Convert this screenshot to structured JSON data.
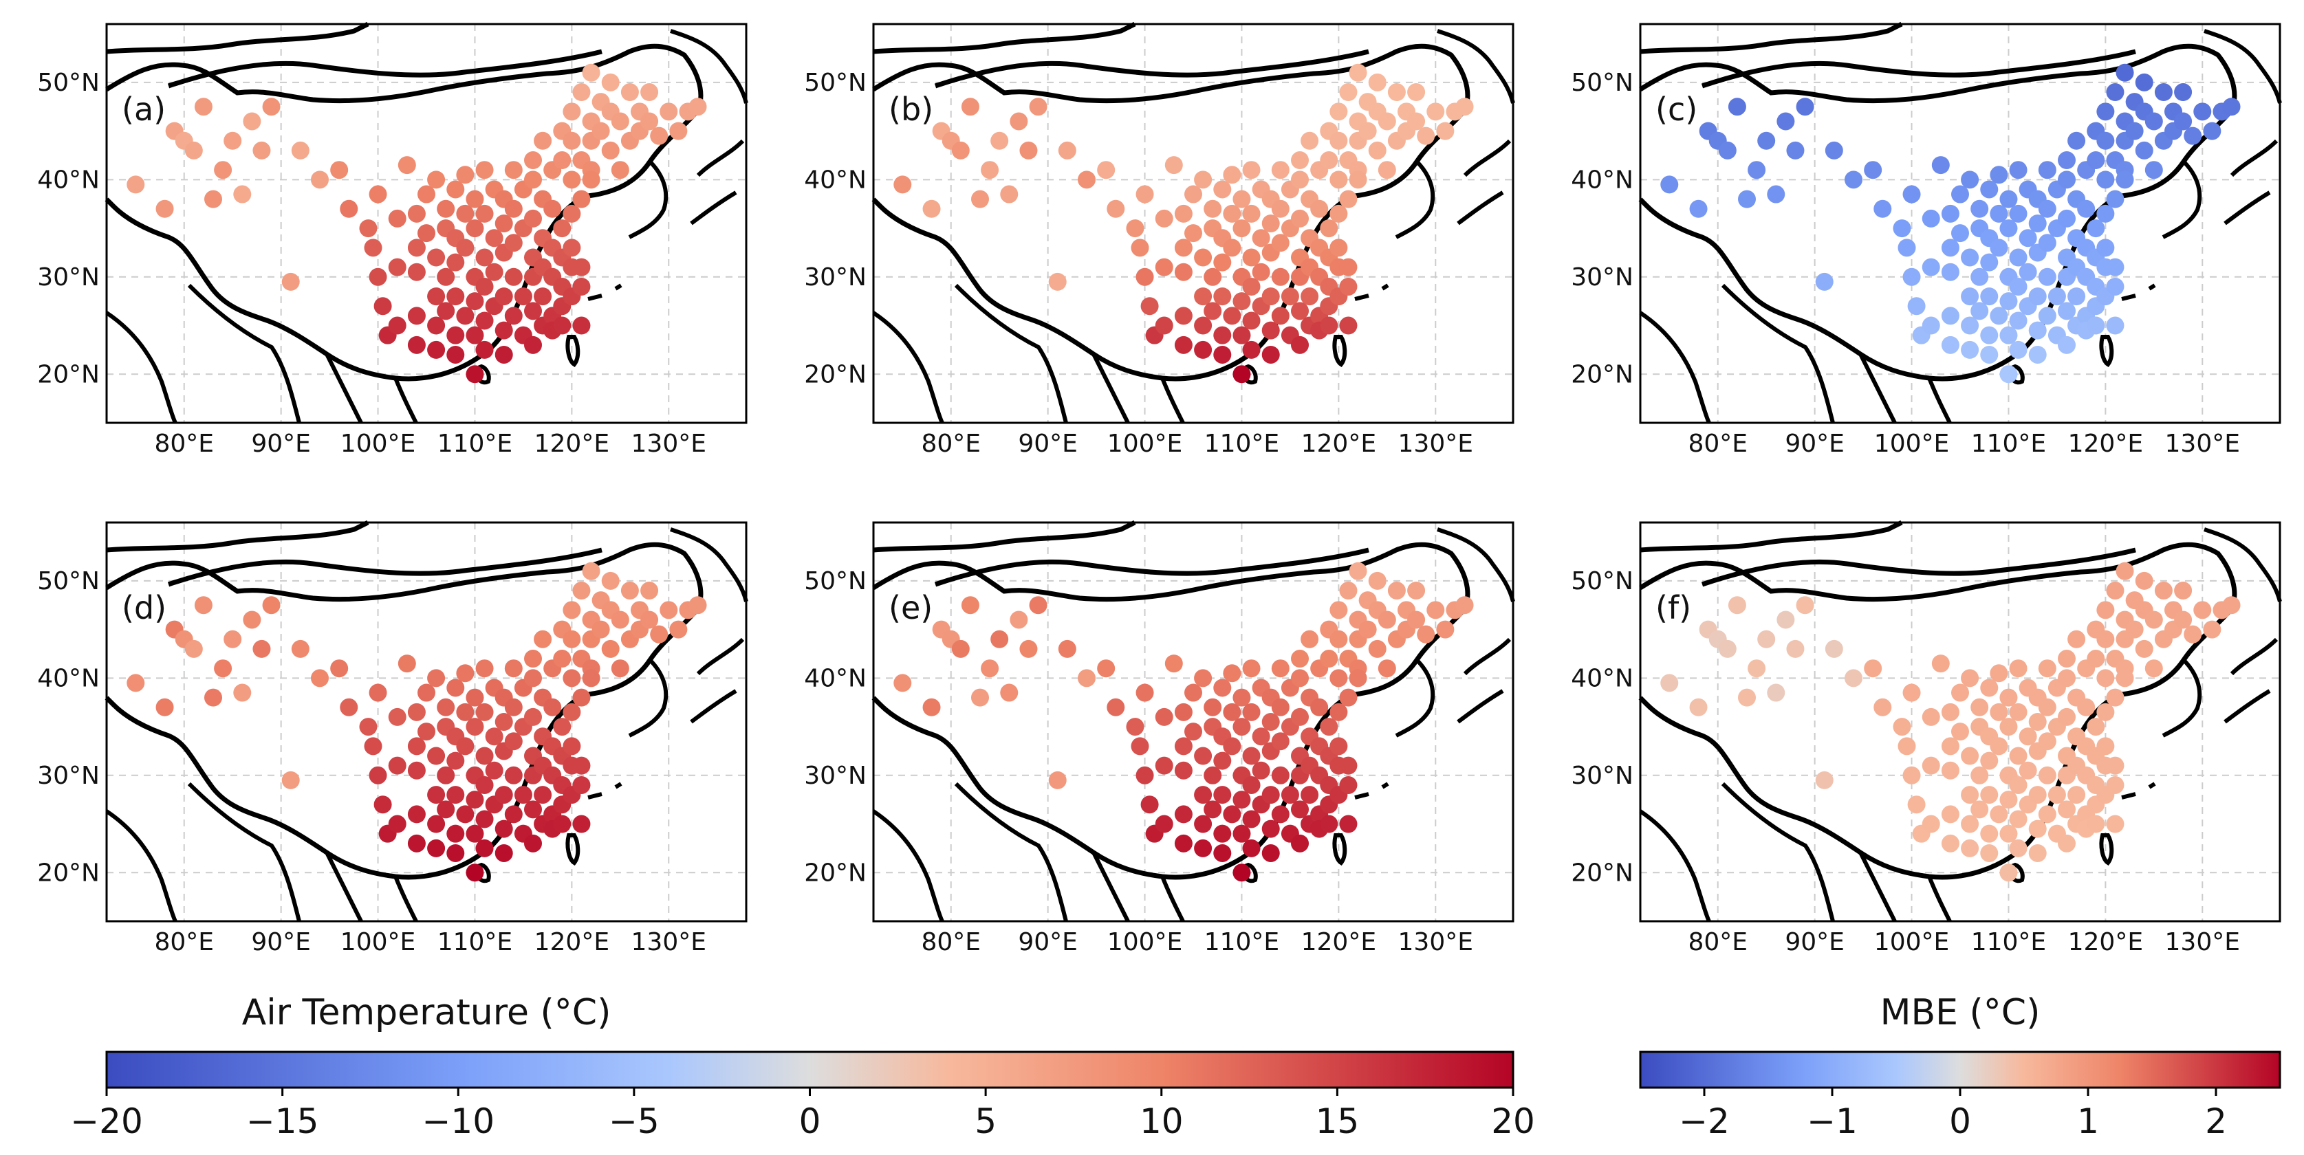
{
  "chart_data": [
    {
      "panel": "(a)",
      "type": "scatter",
      "colorbar": "temp",
      "pattern": "warm_low"
    },
    {
      "panel": "(b)",
      "type": "scatter",
      "colorbar": "temp",
      "pattern": "warm_mid"
    },
    {
      "panel": "(c)",
      "type": "scatter",
      "colorbar": "mbe",
      "pattern": "bias_negative"
    },
    {
      "panel": "(d)",
      "type": "scatter",
      "colorbar": "temp",
      "pattern": "warm_high"
    },
    {
      "panel": "(e)",
      "type": "scatter",
      "colorbar": "temp",
      "pattern": "warm_high2"
    },
    {
      "panel": "(f)",
      "type": "scatter",
      "colorbar": "mbe",
      "pattern": "bias_positive"
    }
  ],
  "axes": {
    "x_ticks": [
      "80°E",
      "90°E",
      "100°E",
      "110°E",
      "120°E",
      "130°E"
    ],
    "x_values": [
      80,
      90,
      100,
      110,
      120,
      130
    ],
    "y_ticks": [
      "20°N",
      "30°N",
      "40°N",
      "50°N"
    ],
    "y_values": [
      20,
      30,
      40,
      50
    ],
    "xlim": [
      72,
      138
    ],
    "ylim": [
      15,
      56
    ],
    "grid": true
  },
  "colorbars": {
    "temp": {
      "title": "Air Temperature (°C)",
      "range": [
        -20,
        20
      ],
      "ticks": [
        -20,
        -15,
        -10,
        -5,
        0,
        5,
        10,
        15,
        20
      ],
      "tick_labels": [
        "−20",
        "−15",
        "−10",
        "−5",
        "0",
        "5",
        "10",
        "15",
        "20"
      ],
      "colormap": "coolwarm"
    },
    "mbe": {
      "title": "MBE (°C)",
      "range": [
        -2.5,
        2.5
      ],
      "ticks": [
        -2,
        -1,
        0,
        1,
        2
      ],
      "tick_labels": [
        "−2",
        "−1",
        "0",
        "1",
        "2"
      ],
      "colormap": "coolwarm"
    }
  },
  "colors": {
    "cold": "#3b4cc0",
    "neutral": "#dddddd",
    "warm": "#b40426",
    "grid": "#cccccc",
    "outline": "#000000"
  },
  "stations": [
    [
      75,
      39.5
    ],
    [
      78,
      37
    ],
    [
      79,
      45
    ],
    [
      80,
      44
    ],
    [
      81,
      43
    ],
    [
      82,
      47.5
    ],
    [
      83,
      38
    ],
    [
      84,
      41
    ],
    [
      85,
      44
    ],
    [
      86,
      38.5
    ],
    [
      87,
      46
    ],
    [
      88,
      43
    ],
    [
      89,
      47.5
    ],
    [
      91,
      29.5
    ],
    [
      92,
      43
    ],
    [
      94,
      40
    ],
    [
      96,
      41
    ],
    [
      97,
      37
    ],
    [
      99,
      35
    ],
    [
      99.5,
      33
    ],
    [
      100,
      38.5
    ],
    [
      100,
      30
    ],
    [
      100.5,
      27
    ],
    [
      101,
      24
    ],
    [
      102,
      36
    ],
    [
      102,
      31
    ],
    [
      102,
      25
    ],
    [
      103,
      41.5
    ],
    [
      104,
      36.5
    ],
    [
      104,
      33
    ],
    [
      104,
      30.5
    ],
    [
      104,
      26
    ],
    [
      104,
      23
    ],
    [
      105,
      38.5
    ],
    [
      105,
      34.5
    ],
    [
      106,
      40
    ],
    [
      106,
      32
    ],
    [
      106,
      28
    ],
    [
      106,
      25
    ],
    [
      106,
      22.5
    ],
    [
      107,
      37
    ],
    [
      107,
      35
    ],
    [
      107,
      30
    ],
    [
      107,
      26.5
    ],
    [
      108,
      39
    ],
    [
      108,
      34
    ],
    [
      108,
      31.5
    ],
    [
      108,
      28
    ],
    [
      108,
      24
    ],
    [
      108,
      22
    ],
    [
      109,
      40.5
    ],
    [
      109,
      36.5
    ],
    [
      109,
      33
    ],
    [
      109,
      26
    ],
    [
      110,
      38
    ],
    [
      110,
      35
    ],
    [
      110,
      30
    ],
    [
      110,
      27.5
    ],
    [
      110,
      24
    ],
    [
      110,
      20
    ],
    [
      111,
      41
    ],
    [
      111,
      36.5
    ],
    [
      111,
      32
    ],
    [
      111,
      29
    ],
    [
      111,
      25.5
    ],
    [
      111,
      22.5
    ],
    [
      112,
      39
    ],
    [
      112,
      34
    ],
    [
      112,
      30.5
    ],
    [
      112,
      27
    ],
    [
      113,
      38
    ],
    [
      113,
      35.5
    ],
    [
      113,
      32.5
    ],
    [
      113,
      28
    ],
    [
      113,
      24.5
    ],
    [
      113,
      22
    ],
    [
      114,
      41
    ],
    [
      114,
      37
    ],
    [
      114,
      33.5
    ],
    [
      114,
      30
    ],
    [
      114,
      26
    ],
    [
      115,
      39
    ],
    [
      115,
      35
    ],
    [
      115,
      28
    ],
    [
      115,
      24
    ],
    [
      116,
      42
    ],
    [
      116,
      40
    ],
    [
      116,
      36
    ],
    [
      116,
      32
    ],
    [
      116,
      30
    ],
    [
      116,
      26.5
    ],
    [
      116,
      23
    ],
    [
      117,
      44
    ],
    [
      117,
      38
    ],
    [
      117,
      34
    ],
    [
      117,
      31
    ],
    [
      117,
      28
    ],
    [
      117,
      25
    ],
    [
      118,
      41
    ],
    [
      118,
      37
    ],
    [
      118,
      33
    ],
    [
      118,
      30
    ],
    [
      118,
      26
    ],
    [
      118,
      24.5
    ],
    [
      119,
      45
    ],
    [
      119,
      42
    ],
    [
      119,
      35
    ],
    [
      119,
      32
    ],
    [
      119,
      29
    ],
    [
      119,
      27
    ],
    [
      119,
      25
    ],
    [
      120,
      47
    ],
    [
      120,
      44
    ],
    [
      120,
      40
    ],
    [
      120,
      36.5
    ],
    [
      120,
      33
    ],
    [
      120,
      31
    ],
    [
      120,
      28
    ],
    [
      121,
      49
    ],
    [
      121,
      42
    ],
    [
      121,
      38
    ],
    [
      121,
      31
    ],
    [
      121,
      29
    ],
    [
      121,
      25
    ],
    [
      122,
      51
    ],
    [
      122,
      46
    ],
    [
      122,
      44
    ],
    [
      122,
      41
    ],
    [
      122,
      40
    ],
    [
      123,
      48
    ],
    [
      123,
      45
    ],
    [
      124,
      50
    ],
    [
      124,
      47
    ],
    [
      124,
      43
    ],
    [
      125,
      41
    ],
    [
      125,
      46
    ],
    [
      126,
      49
    ],
    [
      126,
      44
    ],
    [
      127,
      47
    ],
    [
      127,
      45
    ],
    [
      128,
      49
    ],
    [
      128,
      46
    ],
    [
      129,
      44.5
    ],
    [
      130,
      47
    ],
    [
      131,
      45
    ],
    [
      132,
      47
    ],
    [
      133,
      47.5
    ]
  ]
}
